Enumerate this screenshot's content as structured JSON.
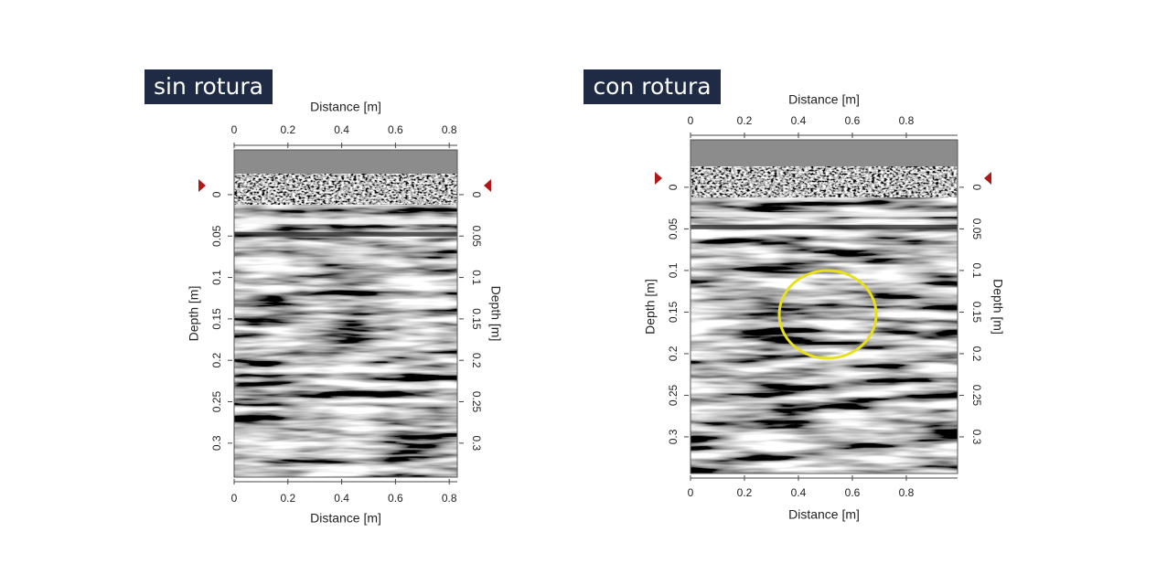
{
  "chart_data": [
    {
      "type": "radargram",
      "title": "sin rotura",
      "xlabel": "Distance [m]",
      "ylabel": "Depth [m]",
      "xlim": [
        0,
        0.83
      ],
      "xticks": [
        0,
        0.2,
        0.4,
        0.6,
        0.8
      ],
      "ylim": [
        -0.054,
        0.341
      ],
      "yticks": [
        0,
        0.05,
        0.1,
        0.15,
        0.2,
        0.25,
        0.3
      ]
    },
    {
      "type": "radargram",
      "title": "con rotura",
      "xlabel": "Distance [m]",
      "ylabel": "Depth [m]",
      "xlim": [
        0,
        0.99
      ],
      "xticks": [
        0,
        0.2,
        0.4,
        0.6,
        0.8
      ],
      "ylim": [
        -0.057,
        0.344
      ],
      "yticks": [
        0,
        0.05,
        0.1,
        0.15,
        0.2,
        0.25,
        0.3
      ]
    }
  ]
}
